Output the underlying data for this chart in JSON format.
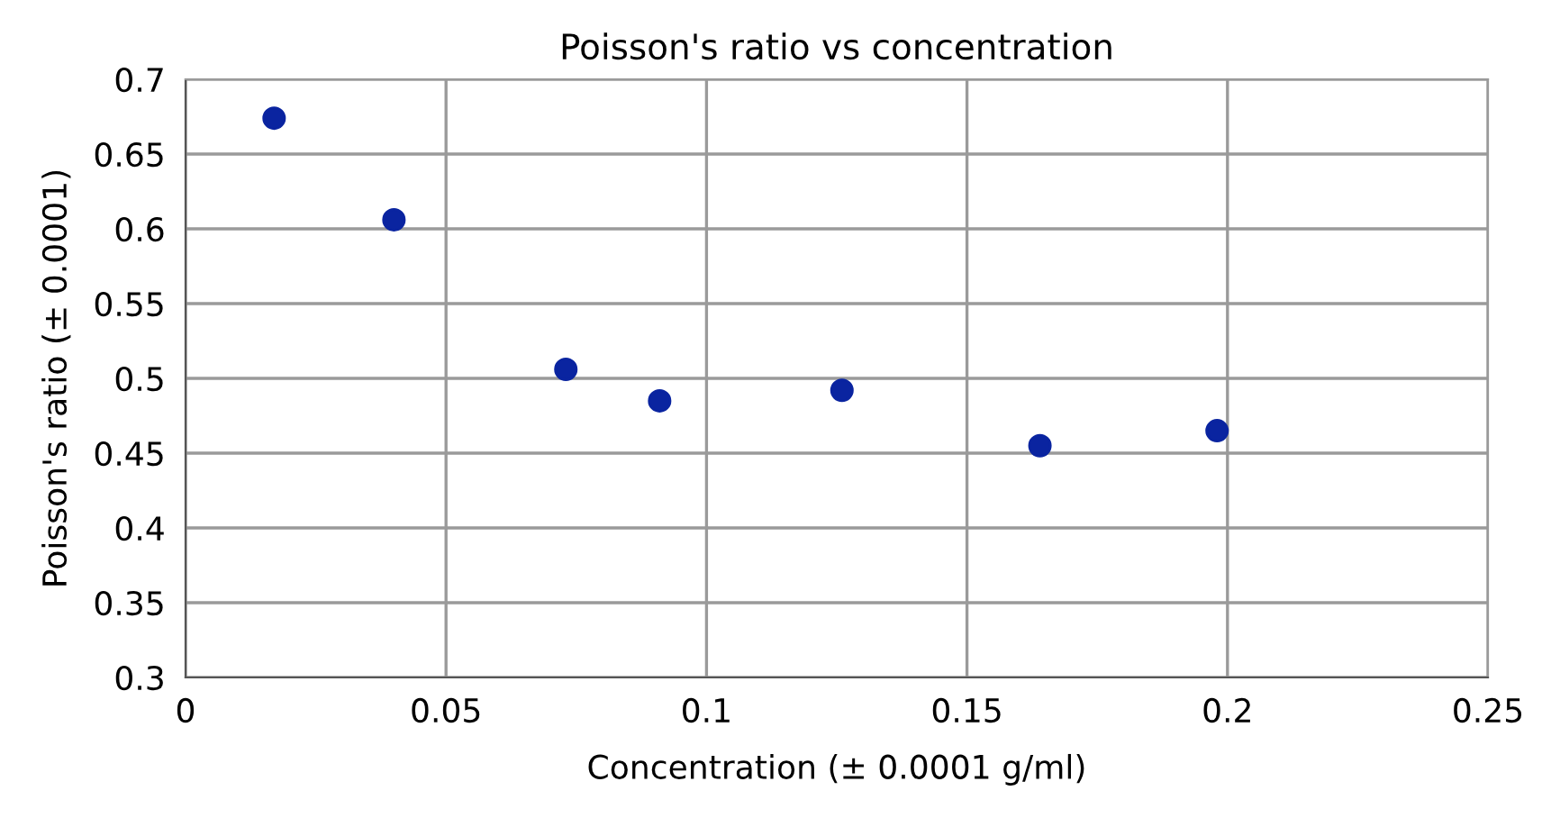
{
  "chart_data": {
    "type": "scatter",
    "title": "Poisson's ratio vs concentration",
    "xlabel": "Concentration (± 0.0001 g/ml)",
    "ylabel": "Poisson's ratio (± 0.0001)",
    "x": [
      0.017,
      0.04,
      0.073,
      0.091,
      0.126,
      0.164,
      0.198
    ],
    "series": [
      {
        "color": "#0a24a0",
        "values": [
          0.674,
          0.606,
          0.506,
          0.485,
          0.492,
          0.455,
          0.465
        ]
      }
    ],
    "xlim": [
      0,
      0.25
    ],
    "xticks": [
      0,
      0.05,
      0.1,
      0.15,
      0.2,
      0.25
    ],
    "ylim": [
      0.3,
      0.7
    ],
    "yticks": [
      0.3,
      0.35,
      0.4,
      0.45,
      0.5,
      0.55,
      0.6,
      0.65,
      0.7
    ],
    "grid": true,
    "marker": "circle"
  }
}
